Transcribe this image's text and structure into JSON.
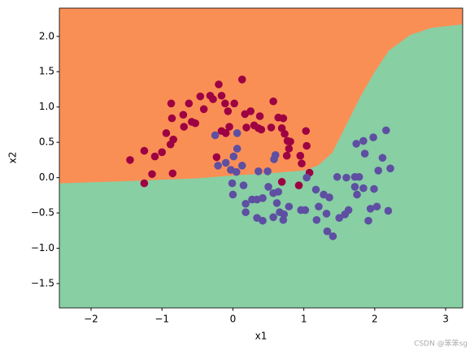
{
  "chart_data": {
    "type": "scatter",
    "xlabel": "x1",
    "ylabel": "x2",
    "xlim": [
      -2.447,
      3.24
    ],
    "ylim": [
      -1.845,
      2.4
    ],
    "xticks": [
      {
        "value": -2,
        "label": "−2"
      },
      {
        "value": -1,
        "label": "−1"
      },
      0,
      1,
      2,
      3
    ],
    "yticks": [
      {
        "value": -1.5,
        "label": "−1.5"
      },
      {
        "value": -1.0,
        "label": "−1.0"
      },
      {
        "value": -0.5,
        "label": "−0.5"
      },
      {
        "value": 0.0,
        "label": "0.0"
      },
      0.5,
      {
        "value": 1.0,
        "label": "1.0"
      },
      1.5,
      {
        "value": 2.0,
        "label": "2.0"
      }
    ],
    "regions": {
      "upper_color": "#fa8f56",
      "lower_color": "#88cfa4",
      "boundary_x": [
        -2.447,
        -1.5,
        -0.5,
        0,
        0.5,
        1.0,
        1.2,
        1.4,
        1.6,
        1.8,
        2.0,
        2.2,
        2.5,
        2.8,
        3.24
      ],
      "boundary_y": [
        -0.08,
        -0.05,
        -0.01,
        0.03,
        0.06,
        0.1,
        0.17,
        0.35,
        0.75,
        1.15,
        1.5,
        1.8,
        2.02,
        2.12,
        2.17
      ]
    },
    "series": [
      {
        "color": "#9e0142",
        "x": [
          -1.45,
          -1.25,
          -1.1,
          -1.14,
          -1.25,
          -1.0,
          -0.94,
          -0.87,
          -0.86,
          -0.88,
          -0.84,
          -0.85,
          -0.69,
          -0.7,
          -0.62,
          -0.58,
          -0.53,
          -0.46,
          -0.41,
          -0.32,
          -0.28,
          -0.2,
          -0.16,
          -0.11,
          -0.07,
          -0.16,
          -0.1,
          -0.23,
          -0.05,
          0.13,
          0.02,
          0.17,
          0.19,
          0.25,
          0.3,
          0.36,
          0.4,
          0.38,
          0.57,
          0.54,
          0.64,
          0.69,
          0.71,
          0.73,
          0.77,
          0.79,
          0.81,
          0.76,
          0.95,
          0.97,
          1.04,
          1.03,
          1.08,
          0.69,
          0.93
        ],
        "values": [
          0.25,
          0.38,
          0.3,
          0.05,
          -0.08,
          0.36,
          0.63,
          1.05,
          0.84,
          0.47,
          0.54,
          0.06,
          0.72,
          0.89,
          1.05,
          0.79,
          0.77,
          1.15,
          0.97,
          1.16,
          1.11,
          1.32,
          1.16,
          1.05,
          0.94,
          0.66,
          0.63,
          0.29,
          0.72,
          1.39,
          1.05,
          0.9,
          0.71,
          0.94,
          0.74,
          0.7,
          0.68,
          0.87,
          1.08,
          0.71,
          0.85,
          0.7,
          0.84,
          0.62,
          0.52,
          0.41,
          0.51,
          0.31,
          0.31,
          0.2,
          0.45,
          0.66,
          0.07,
          -0.06,
          -0.11
        ]
      },
      {
        "color": "#5e4fa2",
        "x": [
          -0.25,
          0.06,
          0.06,
          -0.21,
          0.01,
          -0.03,
          0.05,
          -0.1,
          0.13,
          -0.01,
          0.15,
          0,
          0.18,
          0.27,
          0.34,
          0.42,
          0.36,
          0.49,
          0.58,
          0.6,
          0.5,
          0.57,
          0.64,
          0.62,
          0.66,
          0.72,
          0.79,
          0.71,
          0.57,
          0.42,
          0.34,
          0.18,
          0.96,
          1.02,
          1.04,
          1.17,
          1.21,
          1.28,
          1.36,
          1.32,
          1.18,
          1.33,
          1.41,
          1.5,
          1.58,
          1.63,
          1.47,
          1.6,
          1.72,
          1.78,
          1.75,
          1.84,
          1.72,
          1.74,
          1.84,
          1.86,
          1.98,
          2.11,
          2.05,
          2.16,
          2.22,
          1.99,
          1.94,
          2.03,
          2.19,
          1.91
        ],
        "values": [
          0.6,
          0.63,
          0.41,
          0.17,
          0.3,
          0.11,
          0.08,
          0.21,
          0.17,
          -0.08,
          -0.11,
          -0.24,
          -0.37,
          -0.31,
          -0.31,
          -0.29,
          0.09,
          0.09,
          0.26,
          0.32,
          -0.13,
          -0.22,
          -0.2,
          -0.36,
          -0.49,
          -0.52,
          -0.41,
          -0.6,
          -0.56,
          -0.61,
          -0.57,
          -0.49,
          -0.46,
          -0.46,
          0,
          -0.17,
          -0.41,
          -0.24,
          -0.28,
          -0.51,
          -0.6,
          -0.76,
          -0.83,
          -0.57,
          -0.52,
          -0.46,
          0.01,
          0,
          0.01,
          0.01,
          -0.24,
          -0.15,
          -0.13,
          0.48,
          0.52,
          0.34,
          0.57,
          0.28,
          0.1,
          0.67,
          0.13,
          -0.16,
          -0.44,
          -0.41,
          -0.47,
          -0.61
        ]
      }
    ],
    "watermark": "CSDN @笨笨sg"
  }
}
